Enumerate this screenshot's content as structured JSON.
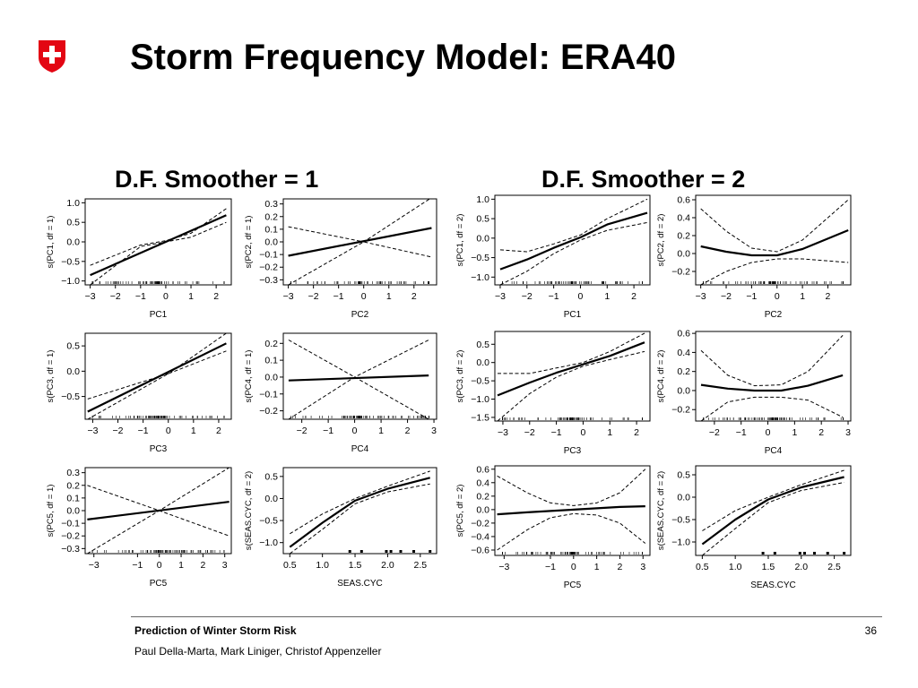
{
  "slide": {
    "title": "Storm Frequency Model: ERA40",
    "logo_icon": "swiss-cross-shield",
    "heading_left": "D.F. Smoother = 1",
    "heading_right": "D.F. Smoother = 2",
    "footer_title": "Prediction of Winter Storm Risk",
    "footer_authors": "Paul Della-Marta, Mark Liniger, Christof Appenzeller",
    "page_number": "36",
    "accent_color": "#e30613"
  },
  "chart_data": [
    {
      "type": "line",
      "group": "df1",
      "xlabel": "PC1",
      "ylabel": "s(PC1, df = 1)",
      "xticks": [
        -3,
        -2,
        -1,
        0,
        1,
        2
      ],
      "yticks": [
        -1.0,
        -0.5,
        0.0,
        0.5,
        1.0
      ],
      "ytick_labels": [
        "−1.0",
        "−0.5",
        "0.0",
        "0.5",
        "1.0"
      ],
      "xlim": [
        -3.2,
        2.6
      ],
      "ylim": [
        -1.1,
        1.1
      ],
      "fit": {
        "x": [
          -3,
          2.4
        ],
        "y": [
          -0.85,
          0.68
        ]
      },
      "upper": {
        "x": [
          -3,
          -1,
          0,
          1,
          2.4
        ],
        "y": [
          -0.6,
          -0.08,
          0.03,
          0.22,
          0.85
        ]
      },
      "lower": {
        "x": [
          -3,
          -1,
          0,
          1,
          2.4
        ],
        "y": [
          -1.1,
          -0.12,
          0.0,
          0.12,
          0.5
        ]
      }
    },
    {
      "type": "line",
      "group": "df1",
      "xlabel": "PC2",
      "ylabel": "s(PC2, df = 1)",
      "xticks": [
        -3,
        -2,
        -1,
        0,
        1,
        2
      ],
      "yticks": [
        -0.3,
        -0.2,
        -0.1,
        0.0,
        0.1,
        0.2,
        0.3
      ],
      "ytick_labels": [
        "−0.3",
        "−0.2",
        "−0.1",
        "0.0",
        "0.1",
        "0.2",
        "0.3"
      ],
      "xlim": [
        -3.2,
        2.9
      ],
      "ylim": [
        -0.34,
        0.34
      ],
      "fit": {
        "x": [
          -3,
          2.7
        ],
        "y": [
          -0.11,
          0.11
        ]
      },
      "upper": {
        "x": [
          -3,
          0,
          2.7
        ],
        "y": [
          0.12,
          0.0,
          0.35
        ]
      },
      "lower": {
        "x": [
          -3,
          0,
          2.7
        ],
        "y": [
          -0.34,
          0.0,
          -0.12
        ]
      }
    },
    {
      "type": "line",
      "group": "df1",
      "xlabel": "PC3",
      "ylabel": "s(PC3, df = 1)",
      "xticks": [
        -3,
        -2,
        -1,
        0,
        1,
        2
      ],
      "yticks": [
        -0.5,
        0.0,
        0.5
      ],
      "ytick_labels": [
        "−0.5",
        "0.0",
        "0.5"
      ],
      "xlim": [
        -3.3,
        2.5
      ],
      "ylim": [
        -0.95,
        0.75
      ],
      "fit": {
        "x": [
          -3.2,
          2.3
        ],
        "y": [
          -0.8,
          0.55
        ]
      },
      "upper": {
        "x": [
          -3.2,
          0,
          2.3
        ],
        "y": [
          -0.55,
          -0.05,
          0.75
        ]
      },
      "lower": {
        "x": [
          -3.2,
          0,
          2.3
        ],
        "y": [
          -0.95,
          -0.05,
          0.4
        ]
      }
    },
    {
      "type": "line",
      "group": "df1",
      "xlabel": "PC4",
      "ylabel": "s(PC4, df = 1)",
      "xticks": [
        -2,
        -1,
        0,
        1,
        2,
        3
      ],
      "yticks": [
        -0.2,
        -0.1,
        0.0,
        0.1,
        0.2
      ],
      "ytick_labels": [
        "−0.2",
        "−0.1",
        "0.0",
        "0.1",
        "0.2"
      ],
      "xlim": [
        -2.7,
        3.1
      ],
      "ylim": [
        -0.25,
        0.26
      ],
      "fit": {
        "x": [
          -2.5,
          2.8
        ],
        "y": [
          -0.02,
          0.01
        ]
      },
      "upper": {
        "x": [
          -2.5,
          0,
          2.8
        ],
        "y": [
          0.22,
          0.0,
          -0.25
        ]
      },
      "lower": {
        "x": [
          -2.5,
          0,
          2.8
        ],
        "y": [
          -0.25,
          0.0,
          0.22
        ]
      }
    },
    {
      "type": "line",
      "group": "df1",
      "xlabel": "PC5",
      "ylabel": "s(PC5, df = 1)",
      "xticks": [
        -3,
        -1,
        0,
        1,
        2,
        3
      ],
      "yticks": [
        -0.3,
        -0.2,
        -0.1,
        0.0,
        0.1,
        0.2,
        0.3
      ],
      "ytick_labels": [
        "−0.3",
        "−0.2",
        "−0.1",
        "0.0",
        "0.1",
        "0.2",
        "0.3"
      ],
      "xlim": [
        -3.4,
        3.3
      ],
      "ylim": [
        -0.34,
        0.34
      ],
      "fit": {
        "x": [
          -3.3,
          3.2
        ],
        "y": [
          -0.07,
          0.07
        ]
      },
      "upper": {
        "x": [
          -3.3,
          0,
          3.2
        ],
        "y": [
          0.2,
          0.0,
          -0.2
        ]
      },
      "lower": {
        "x": [
          -3.3,
          0,
          3.2
        ],
        "y": [
          -0.34,
          0.0,
          0.34
        ]
      }
    },
    {
      "type": "line",
      "group": "df1",
      "xlabel": "SEAS.CYC",
      "ylabel": "s(SEAS.CYC, df = 2)",
      "xticks": [
        0.5,
        1.0,
        1.5,
        2.0,
        2.5
      ],
      "yticks": [
        -1.0,
        -0.5,
        0.0,
        0.5
      ],
      "ytick_labels": [
        "−1.0",
        "−0.5",
        "0.0",
        "0.5"
      ],
      "xlim": [
        0.4,
        2.75
      ],
      "ylim": [
        -1.25,
        0.7
      ],
      "fit": {
        "x": [
          0.5,
          1.0,
          1.5,
          2.0,
          2.65
        ],
        "y": [
          -1.1,
          -0.55,
          -0.05,
          0.22,
          0.47
        ]
      },
      "upper": {
        "x": [
          0.5,
          1.0,
          1.5,
          2.0,
          2.65
        ],
        "y": [
          -0.8,
          -0.35,
          0.0,
          0.28,
          0.62
        ]
      },
      "lower": {
        "x": [
          0.5,
          1.0,
          1.5,
          2.0,
          2.65
        ],
        "y": [
          -1.25,
          -0.7,
          -0.12,
          0.15,
          0.33
        ]
      }
    },
    {
      "type": "line",
      "group": "df2",
      "xlabel": "PC1",
      "ylabel": "s(PC1, df = 2)",
      "xticks": [
        -3,
        -2,
        -1,
        0,
        1,
        2
      ],
      "yticks": [
        -1.0,
        -0.5,
        0.0,
        0.5,
        1.0
      ],
      "ytick_labels": [
        "−1.0",
        "−0.5",
        "0.0",
        "0.5",
        "1.0"
      ],
      "xlim": [
        -3.2,
        2.6
      ],
      "ylim": [
        -1.2,
        1.1
      ],
      "fit": {
        "x": [
          -3,
          -2,
          -1,
          0,
          1,
          2.5
        ],
        "y": [
          -0.8,
          -0.55,
          -0.25,
          0.02,
          0.35,
          0.65
        ]
      },
      "upper": {
        "x": [
          -3,
          -2,
          -1,
          0,
          1,
          2.5
        ],
        "y": [
          -0.3,
          -0.35,
          -0.15,
          0.08,
          0.5,
          1.0
        ]
      },
      "lower": {
        "x": [
          -3,
          -2,
          -1,
          0,
          1,
          2.5
        ],
        "y": [
          -1.2,
          -0.85,
          -0.4,
          -0.05,
          0.2,
          0.4
        ]
      }
    },
    {
      "type": "line",
      "group": "df2",
      "xlabel": "PC2",
      "ylabel": "s(PC2, df = 2)",
      "xticks": [
        -3,
        -2,
        -1,
        0,
        1,
        2
      ],
      "yticks": [
        -0.2,
        0.0,
        0.2,
        0.4,
        0.6
      ],
      "ytick_labels": [
        "−0.2",
        "0.0",
        "0.2",
        "0.4",
        "0.6"
      ],
      "xlim": [
        -3.2,
        2.9
      ],
      "ylim": [
        -0.35,
        0.65
      ],
      "fit": {
        "x": [
          -3,
          -2,
          -1,
          0,
          1,
          2.8
        ],
        "y": [
          0.08,
          0.02,
          -0.02,
          -0.02,
          0.05,
          0.26
        ]
      },
      "upper": {
        "x": [
          -3,
          -2,
          -1,
          0,
          1,
          2.8
        ],
        "y": [
          0.5,
          0.25,
          0.06,
          0.02,
          0.15,
          0.6
        ]
      },
      "lower": {
        "x": [
          -3,
          -2,
          -1,
          0,
          1,
          2.8
        ],
        "y": [
          -0.35,
          -0.2,
          -0.1,
          -0.06,
          -0.06,
          -0.1
        ]
      }
    },
    {
      "type": "line",
      "group": "df2",
      "xlabel": "PC3",
      "ylabel": "s(PC3, df = 2)",
      "xticks": [
        -3,
        -2,
        -1,
        0,
        1,
        2
      ],
      "yticks": [
        -1.5,
        -1.0,
        -0.5,
        0.0,
        0.5
      ],
      "ytick_labels": [
        "−1.5",
        "−1.0",
        "−0.5",
        "0.0",
        "0.5"
      ],
      "xlim": [
        -3.3,
        2.5
      ],
      "ylim": [
        -1.6,
        0.85
      ],
      "fit": {
        "x": [
          -3.2,
          -2,
          -1,
          0,
          1,
          2.3
        ],
        "y": [
          -0.9,
          -0.55,
          -0.28,
          -0.05,
          0.18,
          0.55
        ]
      },
      "upper": {
        "x": [
          -3.2,
          -2,
          -1,
          0,
          1,
          2.3
        ],
        "y": [
          -0.3,
          -0.3,
          -0.15,
          0.0,
          0.3,
          0.8
        ]
      },
      "lower": {
        "x": [
          -3.2,
          -2,
          -1,
          0,
          1,
          2.3
        ],
        "y": [
          -1.6,
          -0.85,
          -0.4,
          -0.1,
          0.08,
          0.3
        ]
      }
    },
    {
      "type": "line",
      "group": "df2",
      "xlabel": "PC4",
      "ylabel": "s(PC4, df = 2)",
      "xticks": [
        -2,
        -1,
        0,
        1,
        2,
        3
      ],
      "yticks": [
        -0.2,
        0.0,
        0.2,
        0.4,
        0.6
      ],
      "ytick_labels": [
        "−0.2",
        "0.0",
        "0.2",
        "0.4",
        "0.6"
      ],
      "xlim": [
        -2.7,
        3.1
      ],
      "ylim": [
        -0.32,
        0.62
      ],
      "fit": {
        "x": [
          -2.5,
          -1.5,
          -0.5,
          0.5,
          1.5,
          2.8
        ],
        "y": [
          0.06,
          0.02,
          0.0,
          0.0,
          0.05,
          0.16
        ]
      },
      "upper": {
        "x": [
          -2.5,
          -1.5,
          -0.5,
          0.5,
          1.5,
          2.8
        ],
        "y": [
          0.42,
          0.16,
          0.05,
          0.06,
          0.2,
          0.58
        ]
      },
      "lower": {
        "x": [
          -2.5,
          -1.5,
          -0.5,
          0.5,
          1.5,
          2.8
        ],
        "y": [
          -0.32,
          -0.12,
          -0.07,
          -0.07,
          -0.1,
          -0.28
        ]
      }
    },
    {
      "type": "line",
      "group": "df2",
      "xlabel": "PC5",
      "ylabel": "s(PC5, df = 2)",
      "xticks": [
        -3,
        -1,
        0,
        1,
        2,
        3
      ],
      "yticks": [
        -0.6,
        -0.4,
        -0.2,
        0.0,
        0.2,
        0.4,
        0.6
      ],
      "ytick_labels": [
        "−0.6",
        "−0.4",
        "−0.2",
        "0.0",
        "0.2",
        "0.4",
        "0.6"
      ],
      "xlim": [
        -3.4,
        3.3
      ],
      "ylim": [
        -0.68,
        0.65
      ],
      "fit": {
        "x": [
          -3.3,
          -2,
          -1,
          0,
          1,
          2,
          3.1
        ],
        "y": [
          -0.07,
          -0.04,
          -0.02,
          0.0,
          0.02,
          0.04,
          0.05
        ]
      },
      "upper": {
        "x": [
          -3.3,
          -2,
          -1,
          0,
          1,
          2,
          3.1
        ],
        "y": [
          0.5,
          0.25,
          0.1,
          0.06,
          0.1,
          0.25,
          0.6
        ]
      },
      "lower": {
        "x": [
          -3.3,
          -2,
          -1,
          0,
          1,
          2,
          3.1
        ],
        "y": [
          -0.6,
          -0.3,
          -0.12,
          -0.06,
          -0.08,
          -0.2,
          -0.5
        ]
      }
    },
    {
      "type": "line",
      "group": "df2",
      "xlabel": "SEAS.CYC",
      "ylabel": "s(SEAS.CYC, df = 2)",
      "xticks": [
        0.5,
        1.0,
        1.5,
        2.0,
        2.5
      ],
      "yticks": [
        -1.0,
        -0.5,
        0.0,
        0.5
      ],
      "ytick_labels": [
        "−1.0",
        "−0.5",
        "0.0",
        "0.5"
      ],
      "xlim": [
        0.4,
        2.75
      ],
      "ylim": [
        -1.3,
        0.7
      ],
      "fit": {
        "x": [
          0.5,
          1.0,
          1.5,
          2.0,
          2.65
        ],
        "y": [
          -1.05,
          -0.5,
          -0.05,
          0.22,
          0.45
        ]
      },
      "upper": {
        "x": [
          0.5,
          1.0,
          1.5,
          2.0,
          2.65
        ],
        "y": [
          -0.75,
          -0.3,
          0.0,
          0.28,
          0.6
        ]
      },
      "lower": {
        "x": [
          0.5,
          1.0,
          1.5,
          2.0,
          2.65
        ],
        "y": [
          -1.3,
          -0.7,
          -0.12,
          0.15,
          0.33
        ]
      }
    }
  ]
}
